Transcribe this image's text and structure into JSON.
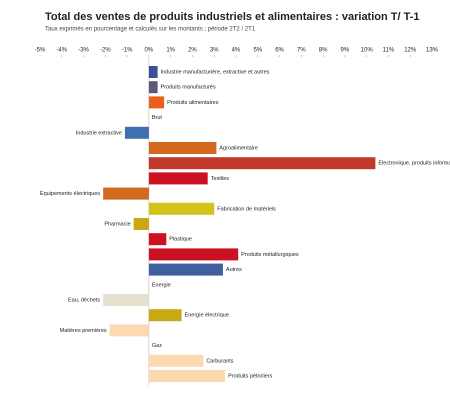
{
  "chart_data": {
    "type": "bar",
    "orientation": "horizontal",
    "title": "Total des ventes de produits industriels et alimentaires : variation T/ T-1",
    "subtitle": "Taux exprimés en pourcentage et calculés sur les montants ; période 2T2 / 2T1",
    "categories": [
      "Industrie manufacturière, extractive et autres",
      "Produits manufacturés",
      "Produits alimentaires",
      "Brut",
      "Industrie extractive",
      "Agroalimentaire",
      "Électronique, produits informatiques",
      "Textiles",
      "Équipements électriques",
      "Fabrication de matériels",
      "Pharmacie",
      "Plastique",
      "Produits métallurgiques",
      "Autres",
      "Énergie",
      "Eau, déchets",
      "Énergie électrique",
      "Matières premières",
      "Gaz",
      "Carburants",
      "Produits pétroliers"
    ],
    "values": [
      0.4,
      0.4,
      0.7,
      null,
      -1.1,
      3.1,
      10.4,
      2.7,
      -2.1,
      3.0,
      -0.7,
      0.8,
      4.1,
      3.4,
      null,
      -2.1,
      1.5,
      -1.8,
      null,
      2.5,
      3.5
    ],
    "colors": [
      "#3a4f9a",
      "#5a5a78",
      "#e8601c",
      null,
      "#3f6fb0",
      "#d2691e",
      "#c0392b",
      "#cc1122",
      "#d2691e",
      "#d4c21a",
      "#c8a814",
      "#cc1122",
      "#cc1122",
      "#3f5f9f",
      null,
      "#e6e0d0",
      "#c8a814",
      "#fcd9b0",
      null,
      "#fcd9b0",
      "#fcd9b0"
    ],
    "xlim": [
      -5,
      13
    ],
    "xticks": [
      {
        "value": -5,
        "label": "-5%"
      },
      {
        "value": -4,
        "label": "-4%"
      },
      {
        "value": -3,
        "label": "-3%"
      },
      {
        "value": -2,
        "label": "-2%"
      },
      {
        "value": -1,
        "label": "-1%"
      },
      {
        "value": 0,
        "label": "0%"
      },
      {
        "value": 1,
        "label": "1%"
      },
      {
        "value": 2,
        "label": "2%"
      },
      {
        "value": 3,
        "label": "3%"
      },
      {
        "value": 4,
        "label": "4%"
      },
      {
        "value": 5,
        "label": "5%"
      },
      {
        "value": 6,
        "label": "6%"
      },
      {
        "value": 7,
        "label": "7%"
      },
      {
        "value": 8,
        "label": "8%"
      },
      {
        "value": 9,
        "label": "9%"
      },
      {
        "value": 10,
        "label": "10%"
      },
      {
        "value": 11,
        "label": "11%"
      },
      {
        "value": 12,
        "label": "12%"
      },
      {
        "value": 13,
        "label": "13%"
      }
    ]
  }
}
